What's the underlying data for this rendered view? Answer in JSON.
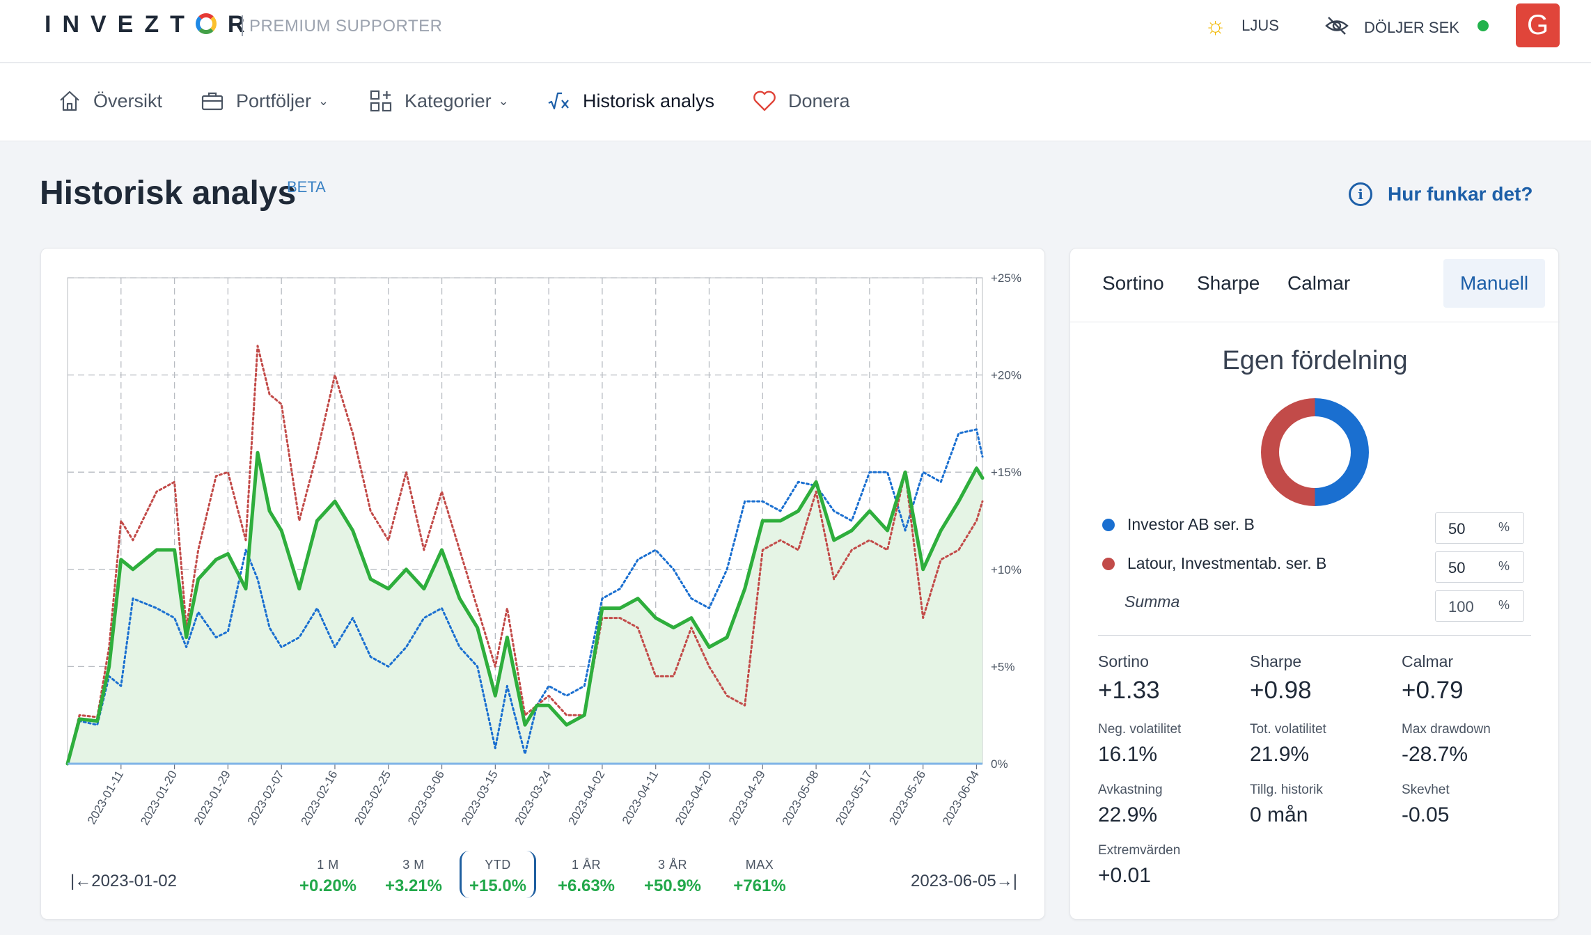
{
  "topbar": {
    "logo": "INVEZTOR",
    "premium": "PREMIUM SUPPORTER",
    "theme_label": "LJUS",
    "hide_label": "DÖLJER SEK",
    "avatar_letter": "G"
  },
  "nav": {
    "items": [
      {
        "label": "Översikt",
        "icon": "home-icon"
      },
      {
        "label": "Portföljer",
        "icon": "briefcase-icon"
      },
      {
        "label": "Kategorier",
        "icon": "grid-plus-icon"
      },
      {
        "label": "Historisk analys",
        "icon": "sqrt-x-icon"
      },
      {
        "label": "Donera",
        "icon": "heart-icon"
      }
    ]
  },
  "page": {
    "title": "Historisk analys",
    "badge": "BETA",
    "help_label": "Hur funkar det?"
  },
  "colors": {
    "portfolio": "#2eae3c",
    "investor": "#1a6fd0",
    "latour": "#c24b49",
    "accent": "#1d5fa8",
    "positive": "#22a84a"
  },
  "chart_data": {
    "type": "line",
    "y_ticks": [
      "+25%",
      "+20%",
      "+15%",
      "+10%",
      "+5%",
      "0%"
    ],
    "ylim": [
      0,
      25
    ],
    "x_ticks": [
      "2023-01-11",
      "2023-01-20",
      "2023-01-29",
      "2023-02-07",
      "2023-02-16",
      "2023-02-25",
      "2023-03-06",
      "2023-03-15",
      "2023-03-24",
      "2023-04-02",
      "2023-04-11",
      "2023-04-20",
      "2023-04-29",
      "2023-05-08",
      "2023-05-17",
      "2023-05-26",
      "2023-06-04"
    ],
    "x_range": [
      "2023-01-02",
      "2023-06-05"
    ],
    "grid": true,
    "series": [
      {
        "name": "Investor AB ser. B",
        "style": "dotted",
        "color": "#1a6fd0",
        "x": [
          "2023-01-02",
          "2023-01-04",
          "2023-01-07",
          "2023-01-09",
          "2023-01-11",
          "2023-01-13",
          "2023-01-17",
          "2023-01-20",
          "2023-01-22",
          "2023-01-24",
          "2023-01-27",
          "2023-01-29",
          "2023-02-01",
          "2023-02-03",
          "2023-02-05",
          "2023-02-07",
          "2023-02-10",
          "2023-02-13",
          "2023-02-16",
          "2023-02-19",
          "2023-02-22",
          "2023-02-25",
          "2023-02-28",
          "2023-03-03",
          "2023-03-06",
          "2023-03-09",
          "2023-03-12",
          "2023-03-15",
          "2023-03-17",
          "2023-03-20",
          "2023-03-22",
          "2023-03-24",
          "2023-03-27",
          "2023-03-30",
          "2023-04-02",
          "2023-04-05",
          "2023-04-08",
          "2023-04-11",
          "2023-04-14",
          "2023-04-17",
          "2023-04-20",
          "2023-04-23",
          "2023-04-26",
          "2023-04-29",
          "2023-05-02",
          "2023-05-05",
          "2023-05-08",
          "2023-05-11",
          "2023-05-14",
          "2023-05-17",
          "2023-05-20",
          "2023-05-23",
          "2023-05-26",
          "2023-05-29",
          "2023-06-01",
          "2023-06-04",
          "2023-06-05"
        ],
        "values": [
          0,
          2.2,
          2.0,
          4.5,
          4.0,
          8.5,
          8.0,
          7.5,
          6.0,
          7.8,
          6.5,
          6.8,
          11.0,
          9.5,
          7.0,
          6.0,
          6.5,
          8.0,
          6.0,
          7.5,
          5.5,
          5.0,
          6.0,
          7.5,
          8.0,
          6.0,
          5.0,
          0.8,
          4.0,
          0.5,
          3.0,
          4.0,
          3.5,
          4.0,
          8.5,
          9.0,
          10.5,
          11.0,
          10.0,
          8.5,
          8.0,
          10.0,
          13.5,
          13.5,
          13.0,
          14.5,
          14.3,
          13.0,
          12.5,
          15.0,
          15.0,
          12.0,
          15.0,
          14.5,
          17.0,
          17.2,
          15.8
        ]
      },
      {
        "name": "Latour, Investmentab. ser. B",
        "style": "dotted",
        "color": "#c24b49",
        "x": [
          "2023-01-02",
          "2023-01-04",
          "2023-01-07",
          "2023-01-09",
          "2023-01-11",
          "2023-01-13",
          "2023-01-17",
          "2023-01-20",
          "2023-01-22",
          "2023-01-24",
          "2023-01-27",
          "2023-01-29",
          "2023-02-01",
          "2023-02-03",
          "2023-02-05",
          "2023-02-07",
          "2023-02-10",
          "2023-02-13",
          "2023-02-16",
          "2023-02-19",
          "2023-02-22",
          "2023-02-25",
          "2023-02-28",
          "2023-03-03",
          "2023-03-06",
          "2023-03-09",
          "2023-03-12",
          "2023-03-15",
          "2023-03-17",
          "2023-03-20",
          "2023-03-22",
          "2023-03-24",
          "2023-03-27",
          "2023-03-30",
          "2023-04-02",
          "2023-04-05",
          "2023-04-08",
          "2023-04-11",
          "2023-04-14",
          "2023-04-17",
          "2023-04-20",
          "2023-04-23",
          "2023-04-26",
          "2023-04-29",
          "2023-05-02",
          "2023-05-05",
          "2023-05-08",
          "2023-05-11",
          "2023-05-14",
          "2023-05-17",
          "2023-05-20",
          "2023-05-23",
          "2023-05-26",
          "2023-05-29",
          "2023-06-01",
          "2023-06-04",
          "2023-06-05"
        ],
        "values": [
          0,
          2.5,
          2.4,
          6.0,
          12.5,
          11.5,
          14.0,
          14.5,
          7.0,
          11.0,
          14.8,
          15.0,
          11.5,
          21.5,
          19.0,
          18.5,
          12.5,
          16.0,
          20.0,
          17.0,
          13.0,
          11.5,
          15.0,
          11.0,
          14.0,
          11.0,
          8.0,
          5.0,
          8.0,
          2.5,
          3.0,
          3.5,
          2.5,
          2.5,
          7.5,
          7.5,
          7.0,
          4.5,
          4.5,
          7.0,
          5.0,
          3.5,
          3.0,
          11.0,
          11.5,
          11.0,
          14.0,
          9.5,
          11.0,
          11.5,
          11.0,
          15.0,
          7.5,
          10.5,
          11.0,
          12.5,
          13.5
        ]
      },
      {
        "name": "Portfölj",
        "style": "solid",
        "color": "#2eae3c",
        "x": [
          "2023-01-02",
          "2023-01-04",
          "2023-01-07",
          "2023-01-09",
          "2023-01-11",
          "2023-01-13",
          "2023-01-17",
          "2023-01-20",
          "2023-01-22",
          "2023-01-24",
          "2023-01-27",
          "2023-01-29",
          "2023-02-01",
          "2023-02-03",
          "2023-02-05",
          "2023-02-07",
          "2023-02-10",
          "2023-02-13",
          "2023-02-16",
          "2023-02-19",
          "2023-02-22",
          "2023-02-25",
          "2023-02-28",
          "2023-03-03",
          "2023-03-06",
          "2023-03-09",
          "2023-03-12",
          "2023-03-15",
          "2023-03-17",
          "2023-03-20",
          "2023-03-22",
          "2023-03-24",
          "2023-03-27",
          "2023-03-30",
          "2023-04-02",
          "2023-04-05",
          "2023-04-08",
          "2023-04-11",
          "2023-04-14",
          "2023-04-17",
          "2023-04-20",
          "2023-04-23",
          "2023-04-26",
          "2023-04-29",
          "2023-05-02",
          "2023-05-05",
          "2023-05-08",
          "2023-05-11",
          "2023-05-14",
          "2023-05-17",
          "2023-05-20",
          "2023-05-23",
          "2023-05-26",
          "2023-05-29",
          "2023-06-01",
          "2023-06-04",
          "2023-06-05"
        ],
        "values": [
          0,
          2.3,
          2.2,
          5.0,
          10.5,
          10.0,
          11.0,
          11.0,
          6.5,
          9.5,
          10.5,
          10.8,
          9.0,
          16.0,
          13.0,
          12.0,
          9.0,
          12.5,
          13.5,
          12.0,
          9.5,
          9.0,
          10.0,
          9.0,
          11.0,
          8.5,
          7.0,
          3.5,
          6.5,
          2.0,
          3.0,
          3.0,
          2.0,
          2.5,
          8.0,
          8.0,
          8.5,
          7.5,
          7.0,
          7.5,
          6.0,
          6.5,
          9.0,
          12.5,
          12.5,
          13.0,
          14.5,
          11.5,
          12.0,
          13.0,
          12.0,
          15.0,
          10.0,
          12.0,
          13.5,
          15.2,
          14.7
        ]
      }
    ]
  },
  "range": {
    "start_date": "2023-01-02",
    "end_date": "2023-06-05",
    "periods": [
      {
        "label": "1 M",
        "value": "+0.20%"
      },
      {
        "label": "3 M",
        "value": "+3.21%"
      },
      {
        "label": "YTD",
        "value": "+15.0%"
      },
      {
        "label": "1 ÅR",
        "value": "+6.63%"
      },
      {
        "label": "3 ÅR",
        "value": "+50.9%"
      },
      {
        "label": "MAX",
        "value": "+761%"
      }
    ],
    "active_period": "YTD"
  },
  "side": {
    "tabs": [
      "Sortino",
      "Sharpe",
      "Calmar",
      "Manuell"
    ],
    "active_tab": "Manuell",
    "allocation_title": "Egen fördelning",
    "holdings": [
      {
        "name": "Investor AB ser. B",
        "weight": "50",
        "color": "#1a6fd0"
      },
      {
        "name": "Latour, Investmentab. ser. B",
        "weight": "50",
        "color": "#c24b49"
      }
    ],
    "sum_label": "Summa",
    "sum_value": "100",
    "percent_symbol": "%",
    "metrics": {
      "sortino_label": "Sortino",
      "sortino": "+1.33",
      "sharpe_label": "Sharpe",
      "sharpe": "+0.98",
      "calmar_label": "Calmar",
      "calmar": "+0.79",
      "neg_vol_label": "Neg. volatilitet",
      "neg_vol": "16.1%",
      "tot_vol_label": "Tot. volatilitet",
      "tot_vol": "21.9%",
      "max_dd_label": "Max drawdown",
      "max_dd": "-28.7%",
      "return_label": "Avkastning",
      "return": "22.9%",
      "history_label": "Tillg. historik",
      "history": "0 mån",
      "skew_label": "Skevhet",
      "skew": "-0.05",
      "extreme_label": "Extremvärden",
      "extreme": "+0.01"
    }
  }
}
